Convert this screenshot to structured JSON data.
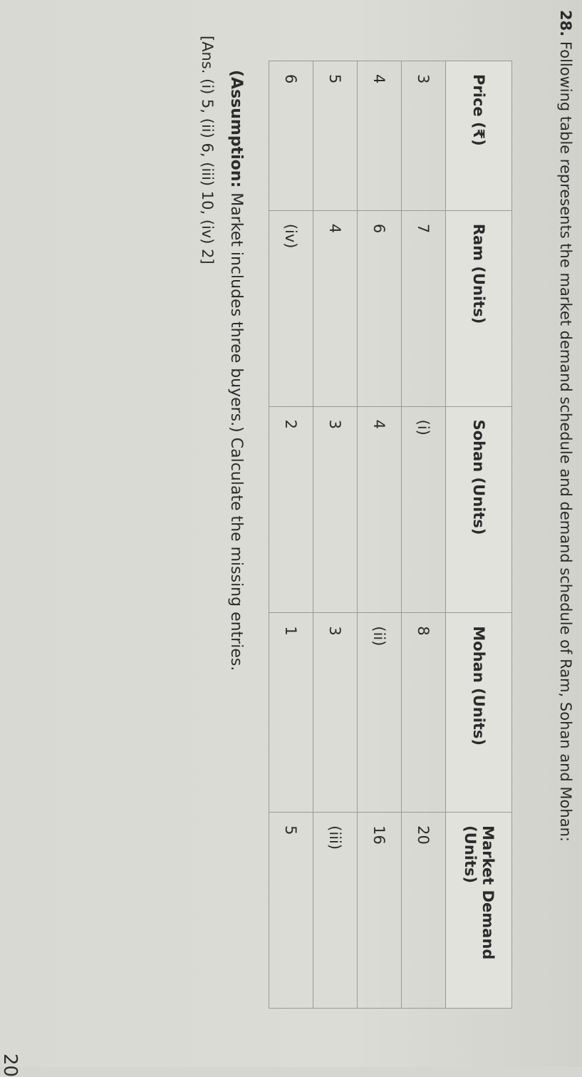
{
  "question": {
    "number": "28.",
    "text": "Following table represents the market demand schedule and demand schedule of Ram, Sohan and Mohan:"
  },
  "table": {
    "headers": [
      "Price (₹)",
      "Ram (Units)",
      "Sohan (Units)",
      "Mohan (Units)",
      "Market Demand (Units)"
    ],
    "rows": [
      [
        "3",
        "7",
        "(i)",
        "8",
        "20"
      ],
      [
        "4",
        "6",
        "4",
        "(ii)",
        "16"
      ],
      [
        "5",
        "4",
        "3",
        "3",
        "(iii)"
      ],
      [
        "6",
        "(iv)",
        "2",
        "1",
        "5"
      ]
    ]
  },
  "assumption": {
    "label": "(Assumption:",
    "text": " Market includes three buyers.) Calculate the missing entries."
  },
  "answer": "[Ans. (i) 5, (ii) 6, (iii) 10, (iv) 2]",
  "page_number": "20"
}
